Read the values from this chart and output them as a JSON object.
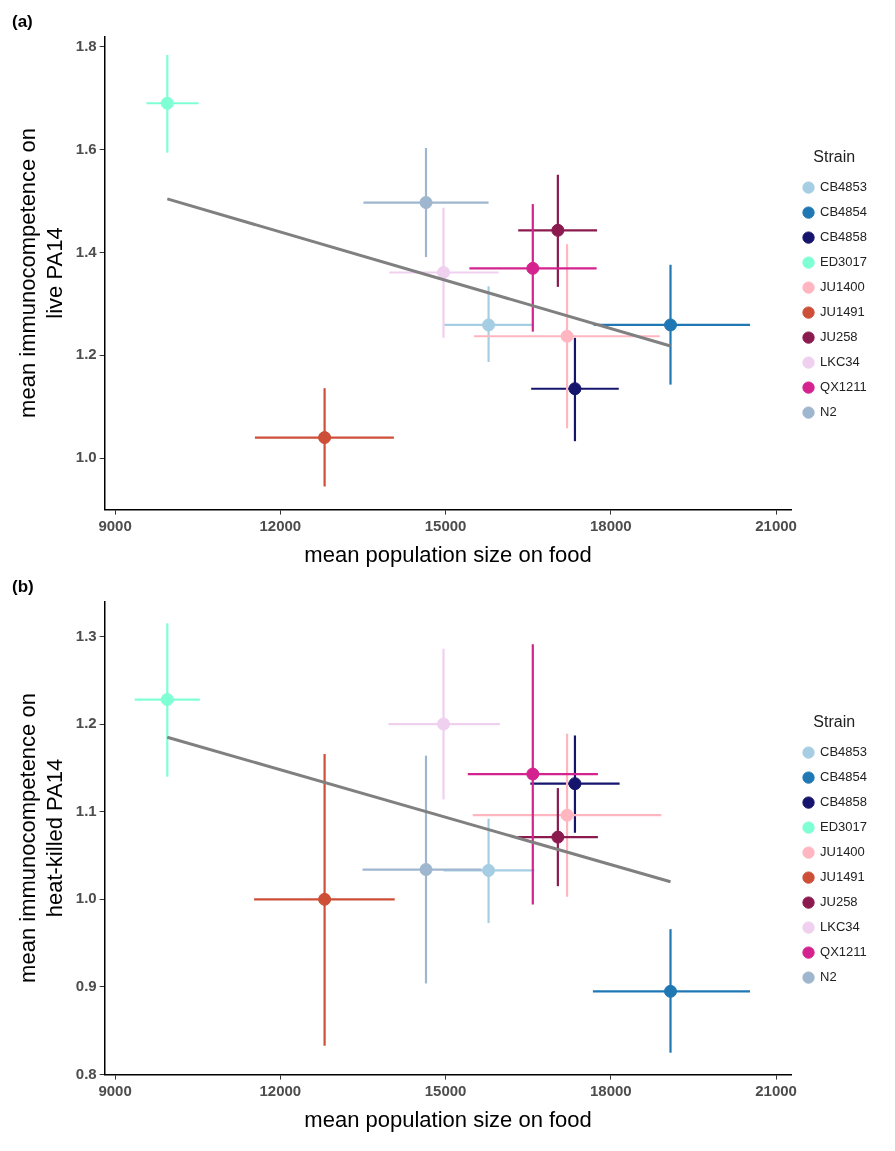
{
  "chart_data": [
    {
      "type": "scatter",
      "title": "(a)",
      "xlabel": "mean population size on food",
      "ylabel": "mean immunocompetence on\nlive PA14",
      "legend_title": "Strain",
      "legend": "right",
      "grid": false,
      "marker": "circle",
      "xlim": [
        8810,
        21280
      ],
      "xticks": [
        9000,
        12000,
        15000,
        18000,
        21000
      ],
      "ylim": [
        0.9,
        1.82
      ],
      "yticks": [
        {
          "value": 1.0,
          "label": "1.0"
        },
        1.2,
        1.4,
        1.6,
        1.8
      ],
      "series": [
        {
          "name": "CB4853",
          "color": "#a6cee3",
          "x": [
            15780
          ],
          "values": [
            1.259
          ],
          "xerrors": [
            [
              14962,
              16606
            ]
          ],
          "errors": [
            [
              1.187,
              1.334
            ]
          ]
        },
        {
          "name": "CB4854",
          "color": "#1f78b4",
          "x": [
            19083
          ],
          "values": [
            1.259
          ],
          "xerrors": [
            [
              17689,
              20526
            ]
          ],
          "errors": [
            [
              1.143,
              1.376
            ]
          ]
        },
        {
          "name": "CB4858",
          "color": "#15156e",
          "x": [
            17348
          ],
          "values": [
            1.135
          ],
          "xerrors": [
            [
              16553,
              18144
            ]
          ],
          "errors": [
            [
              1.033,
              1.234
            ]
          ]
        },
        {
          "name": "ED3017",
          "color": "#7fffd4",
          "x": [
            9947
          ],
          "values": [
            1.69
          ],
          "xerrors": [
            [
              9568,
              10515
            ]
          ],
          "errors": [
            [
              1.594,
              1.784
            ]
          ]
        },
        {
          "name": "JU1400",
          "color": "#ffb6c1",
          "x": [
            17205
          ],
          "values": [
            1.237
          ],
          "xerrors": [
            [
              15515,
              18886
            ]
          ],
          "errors": [
            [
              1.058,
              1.416
            ]
          ]
        },
        {
          "name": "JU1491",
          "color": "#cd4f37",
          "x": [
            12803
          ],
          "values": [
            1.04
          ],
          "xerrors": [
            [
              11538,
              14061
            ]
          ],
          "errors": [
            [
              0.945,
              1.136
            ]
          ]
        },
        {
          "name": "JU258",
          "color": "#8b1a4f",
          "x": [
            17038
          ],
          "values": [
            1.443
          ],
          "xerrors": [
            [
              16318,
              17750
            ]
          ],
          "errors": [
            [
              1.333,
              1.551
            ]
          ]
        },
        {
          "name": "LKC34",
          "color": "#efd0ef",
          "x": [
            14962
          ],
          "values": [
            1.361
          ],
          "xerrors": [
            [
              13977,
              15962
            ]
          ],
          "errors": [
            [
              1.234,
              1.487
            ]
          ]
        },
        {
          "name": "QX1211",
          "color": "#d4238f",
          "x": [
            16583
          ],
          "values": [
            1.369
          ],
          "xerrors": [
            [
              15432,
              17742
            ]
          ],
          "errors": [
            [
              1.246,
              1.494
            ]
          ]
        },
        {
          "name": "N2",
          "color": "#9fb6cf",
          "x": [
            14644
          ],
          "values": [
            1.497
          ],
          "xerrors": [
            [
              13508,
              15780
            ]
          ],
          "errors": [
            [
              1.391,
              1.603
            ]
          ]
        },
        {
          "type": "line",
          "marker": "none",
          "color": "#808080",
          "x": [
            9947,
            19083
          ],
          "values": [
            1.504,
            1.218
          ]
        }
      ]
    },
    {
      "type": "scatter",
      "title": "(b)",
      "xlabel": "mean population size on food",
      "ylabel": "mean immunocompetence on\nheat-killed PA14",
      "legend_title": "Strain",
      "legend": "right",
      "grid": false,
      "marker": "circle",
      "xlim": [
        8810,
        21280
      ],
      "xticks": [
        9000,
        12000,
        15000,
        18000,
        21000
      ],
      "ylim": [
        0.8,
        1.34
      ],
      "yticks": [
        0.8,
        0.9,
        {
          "value": 1.0,
          "label": "1.0"
        },
        1.1,
        1.2,
        1.3
      ],
      "series": [
        {
          "name": "CB4853",
          "color": "#a6cee3",
          "x": [
            15780
          ],
          "values": [
            1.033
          ],
          "xerrors": [
            [
              14962,
              16614
            ]
          ],
          "errors": [
            [
              0.973,
              1.092
            ]
          ]
        },
        {
          "name": "CB4854",
          "color": "#1f78b4",
          "x": [
            19083
          ],
          "values": [
            0.895
          ],
          "xerrors": [
            [
              17674,
              20526
            ]
          ],
          "errors": [
            [
              0.825,
              0.966
            ]
          ]
        },
        {
          "name": "CB4858",
          "color": "#15156e",
          "x": [
            17348
          ],
          "values": [
            1.132
          ],
          "xerrors": [
            [
              16538,
              18159
            ]
          ],
          "errors": [
            [
              1.076,
              1.187
            ]
          ]
        },
        {
          "name": "ED3017",
          "color": "#7fffd4",
          "x": [
            9947
          ],
          "values": [
            1.228
          ],
          "xerrors": [
            [
              9356,
              10538
            ]
          ],
          "errors": [
            [
              1.14,
              1.315
            ]
          ]
        },
        {
          "name": "JU1400",
          "color": "#ffb6c1",
          "x": [
            17205
          ],
          "values": [
            1.096
          ],
          "xerrors": [
            [
              15492,
              18917
            ]
          ],
          "errors": [
            [
              1.003,
              1.189
            ]
          ]
        },
        {
          "name": "JU1491",
          "color": "#cd4f37",
          "x": [
            12803
          ],
          "values": [
            1.0
          ],
          "xerrors": [
            [
              11523,
              14076
            ]
          ],
          "errors": [
            [
              0.833,
              1.166
            ]
          ]
        },
        {
          "name": "JU258",
          "color": "#8b1a4f",
          "x": [
            17038
          ],
          "values": [
            1.071
          ],
          "xerrors": [
            [
              16311,
              17765
            ]
          ],
          "errors": [
            [
              1.015,
              1.127
            ]
          ]
        },
        {
          "name": "LKC34",
          "color": "#efd0ef",
          "x": [
            14962
          ],
          "values": [
            1.2
          ],
          "xerrors": [
            [
              13962,
              15985
            ]
          ],
          "errors": [
            [
              1.114,
              1.286
            ]
          ]
        },
        {
          "name": "QX1211",
          "color": "#d4238f",
          "x": [
            16583
          ],
          "values": [
            1.143
          ],
          "xerrors": [
            [
              15402,
              17765
            ]
          ],
          "errors": [
            [
              0.994,
              1.291
            ]
          ]
        },
        {
          "name": "N2",
          "color": "#9fb6cf",
          "x": [
            14644
          ],
          "values": [
            1.034
          ],
          "xerrors": [
            [
              13492,
              15650
            ]
          ],
          "errors": [
            [
              0.904,
              1.164
            ]
          ]
        },
        {
          "type": "line",
          "marker": "none",
          "color": "#808080",
          "x": [
            9947,
            19083
          ],
          "values": [
            1.185,
            1.02
          ]
        }
      ]
    }
  ]
}
